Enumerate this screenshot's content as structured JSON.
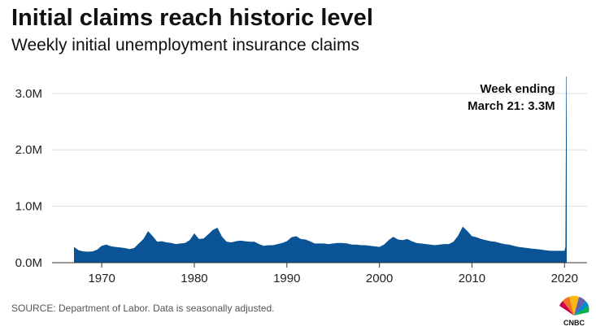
{
  "title": "Initial claims reach historic level",
  "subtitle": "Weekly initial unemployment insurance claims",
  "source": "SOURCE: Department of Labor. Data is seasonally adjusted.",
  "logo_text": "CNBC",
  "colors": {
    "bar": "#0a5394",
    "grid": "#dddddd",
    "axis": "#333333"
  },
  "chart_data": {
    "type": "area",
    "x_unit": "year",
    "y_unit": "claims",
    "xlim": [
      1967,
      2020.25
    ],
    "ylim": [
      0,
      3300000
    ],
    "yticks": [
      {
        "value": 0,
        "label": "0.0M"
      },
      {
        "value": 1000000,
        "label": "1.0M"
      },
      {
        "value": 2000000,
        "label": "2.0M"
      },
      {
        "value": 3000000,
        "label": "3.0M"
      }
    ],
    "xticks": [
      {
        "value": 1970,
        "label": "1970"
      },
      {
        "value": 1980,
        "label": "1980"
      },
      {
        "value": 1990,
        "label": "1990"
      },
      {
        "value": 2000,
        "label": "2000"
      },
      {
        "value": 2010,
        "label": "2010"
      },
      {
        "value": 2020,
        "label": "2020"
      }
    ],
    "grid": true,
    "series": [
      {
        "x": [
          1967.0,
          1967.5,
          1968.0,
          1968.5,
          1969.0,
          1969.5,
          1970.0,
          1970.5,
          1971.0,
          1971.5,
          1972.0,
          1972.5,
          1973.0,
          1973.5,
          1974.0,
          1974.5,
          1975.0,
          1975.5,
          1976.0,
          1976.5,
          1977.0,
          1977.5,
          1978.0,
          1978.5,
          1979.0,
          1979.5,
          1980.0,
          1980.5,
          1981.0,
          1981.5,
          1982.0,
          1982.5,
          1983.0,
          1983.5,
          1984.0,
          1984.5,
          1985.0,
          1985.5,
          1986.0,
          1986.5,
          1987.0,
          1987.5,
          1988.0,
          1988.5,
          1989.0,
          1989.5,
          1990.0,
          1990.5,
          1991.0,
          1991.5,
          1992.0,
          1992.5,
          1993.0,
          1993.5,
          1994.0,
          1994.5,
          1995.0,
          1995.5,
          1996.0,
          1996.5,
          1997.0,
          1997.5,
          1998.0,
          1998.5,
          1999.0,
          1999.5,
          2000.0,
          2000.5,
          2001.0,
          2001.5,
          2002.0,
          2002.5,
          2003.0,
          2003.5,
          2004.0,
          2004.5,
          2005.0,
          2005.5,
          2006.0,
          2006.5,
          2007.0,
          2007.5,
          2008.0,
          2008.5,
          2009.0,
          2009.5,
          2010.0,
          2010.5,
          2011.0,
          2011.5,
          2012.0,
          2012.5,
          2013.0,
          2013.5,
          2014.0,
          2014.5,
          2015.0,
          2015.5,
          2016.0,
          2016.5,
          2017.0,
          2017.5,
          2018.0,
          2018.5,
          2019.0,
          2019.5,
          2020.0,
          2020.1,
          2020.19,
          2020.21,
          2020.24
        ],
        "y": [
          280000,
          220000,
          200000,
          195000,
          200000,
          230000,
          300000,
          320000,
          290000,
          280000,
          270000,
          260000,
          240000,
          260000,
          340000,
          420000,
          560000,
          470000,
          370000,
          380000,
          360000,
          350000,
          330000,
          340000,
          350000,
          400000,
          520000,
          420000,
          430000,
          500000,
          580000,
          620000,
          460000,
          370000,
          360000,
          380000,
          390000,
          380000,
          370000,
          370000,
          330000,
          300000,
          310000,
          310000,
          330000,
          350000,
          380000,
          450000,
          470000,
          420000,
          410000,
          380000,
          340000,
          340000,
          340000,
          330000,
          340000,
          350000,
          350000,
          340000,
          320000,
          320000,
          310000,
          310000,
          300000,
          290000,
          280000,
          320000,
          400000,
          460000,
          410000,
          400000,
          420000,
          380000,
          350000,
          340000,
          330000,
          320000,
          310000,
          320000,
          330000,
          330000,
          370000,
          480000,
          640000,
          560000,
          470000,
          450000,
          420000,
          400000,
          380000,
          370000,
          350000,
          330000,
          320000,
          300000,
          280000,
          270000,
          260000,
          250000,
          240000,
          230000,
          220000,
          210000,
          210000,
          210000,
          210000,
          280000,
          3300000,
          3300000,
          3300000
        ]
      }
    ],
    "annotation": {
      "text_line1": "Week ending",
      "text_line2": "March 21: 3.3M",
      "x": 2020.21,
      "y": 3300000
    }
  }
}
